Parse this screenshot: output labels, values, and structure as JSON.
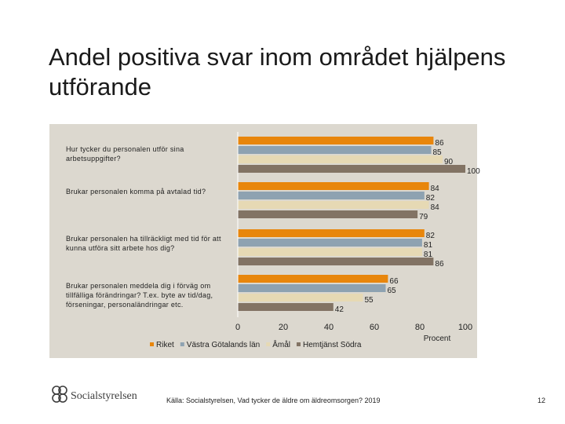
{
  "slide": {
    "title": "Andel positiva svar inom området hjälpens utförande",
    "source": "Källa: Socialstyrelsen, Vad tycker de äldre om äldreomsorgen? 2019",
    "page_number": "12",
    "logo_text": "Socialstyrelsen"
  },
  "chart_data": {
    "type": "bar",
    "orientation": "horizontal",
    "categories": [
      "Hur tycker du personalen utför sina arbetsuppgifter?",
      "Brukar personalen komma på avtalad tid?",
      "Brukar personalen ha tillräckligt med tid för att kunna utföra sitt arbete hos dig?",
      "Brukar personalen meddela dig i förväg om tillfälliga förändringar? T.ex. byte av tid/dag, förseningar, personaländringar etc."
    ],
    "series": [
      {
        "name": "Riket",
        "color": "#e8860c",
        "values": [
          86,
          84,
          82,
          66
        ]
      },
      {
        "name": "Västra Götalands län",
        "color": "#8ea2b1",
        "values": [
          85,
          82,
          81,
          65
        ]
      },
      {
        "name": "Åmål",
        "color": "#e6d9b4",
        "values": [
          90,
          84,
          81,
          55
        ]
      },
      {
        "name": "Hemtjänst Södra",
        "color": "#827364",
        "values": [
          100,
          79,
          86,
          42
        ]
      }
    ],
    "xlabel": "Procent",
    "xlim": [
      0,
      100
    ],
    "xticks": [
      "0",
      "20",
      "40",
      "60",
      "80",
      "100"
    ],
    "legend_position": "bottom",
    "grid": false
  }
}
